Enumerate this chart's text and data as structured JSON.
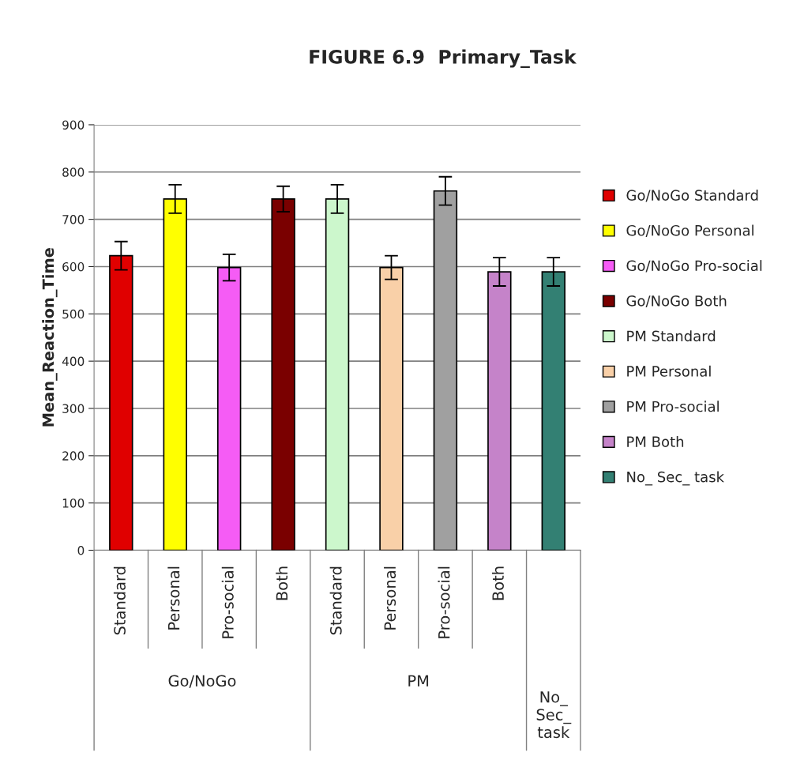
{
  "chart_data": {
    "type": "bar",
    "title": "FIGURE 6.9  Primary_Task",
    "ylabel": "Mean_Reaction_Time",
    "categories": [
      "Standard",
      "Personal",
      "Pro-social",
      "Both",
      "Standard",
      "Personal",
      "Pro-social",
      "Both",
      null
    ],
    "annotations": [
      "Go/NoGo",
      "PM",
      "No_ Sec_ task"
    ],
    "series": [
      {
        "name": "Go/NoGo Standard",
        "color": "#e00000",
        "values": [
          623,
          null,
          null,
          null,
          null,
          null,
          null,
          null,
          null
        ],
        "errors": [
          30,
          null,
          null,
          null,
          null,
          null,
          null,
          null,
          null
        ]
      },
      {
        "name": "Go/NoGo Personal",
        "color": "#ffff00",
        "values": [
          null,
          743,
          null,
          null,
          null,
          null,
          null,
          null,
          null
        ],
        "errors": [
          null,
          30,
          null,
          null,
          null,
          null,
          null,
          null,
          null
        ]
      },
      {
        "name": "Go/NoGo Pro-social",
        "color": "#f55cf5",
        "values": [
          null,
          null,
          598,
          null,
          null,
          null,
          null,
          null,
          null
        ],
        "errors": [
          null,
          null,
          28,
          null,
          null,
          null,
          null,
          null,
          null
        ]
      },
      {
        "name": "Go/NoGo Both",
        "color": "#7a0000",
        "values": [
          null,
          null,
          null,
          743,
          null,
          null,
          null,
          null,
          null
        ],
        "errors": [
          null,
          null,
          null,
          27,
          null,
          null,
          null,
          null,
          null
        ]
      },
      {
        "name": "PM Standard",
        "color": "#ccf7cc",
        "values": [
          null,
          null,
          null,
          null,
          743,
          null,
          null,
          null,
          null
        ],
        "errors": [
          null,
          null,
          null,
          null,
          30,
          null,
          null,
          null,
          null
        ]
      },
      {
        "name": "PM Personal",
        "color": "#f9d0a8",
        "values": [
          null,
          null,
          null,
          null,
          null,
          598,
          null,
          null,
          null
        ],
        "errors": [
          null,
          null,
          null,
          null,
          null,
          25,
          null,
          null,
          null
        ]
      },
      {
        "name": "PM Pro-social",
        "color": "#a0a0a0",
        "values": [
          null,
          null,
          null,
          null,
          null,
          null,
          760,
          null,
          null
        ],
        "errors": [
          null,
          null,
          null,
          null,
          null,
          null,
          30,
          null,
          null
        ]
      },
      {
        "name": "PM Both",
        "color": "#c583c9",
        "values": [
          null,
          null,
          null,
          null,
          null,
          null,
          null,
          589,
          null
        ],
        "errors": [
          null,
          null,
          null,
          null,
          null,
          null,
          null,
          30,
          null
        ]
      },
      {
        "name": "No_ Sec_ task",
        "color": "#338073",
        "values": [
          null,
          null,
          null,
          null,
          null,
          null,
          null,
          null,
          589
        ],
        "errors": [
          null,
          null,
          null,
          null,
          null,
          null,
          null,
          null,
          30
        ]
      }
    ],
    "ylim": [
      0,
      900
    ],
    "yticks": [
      0,
      100,
      200,
      300,
      400,
      500,
      600,
      700,
      800,
      900
    ],
    "grid": "y",
    "legend": "right"
  }
}
